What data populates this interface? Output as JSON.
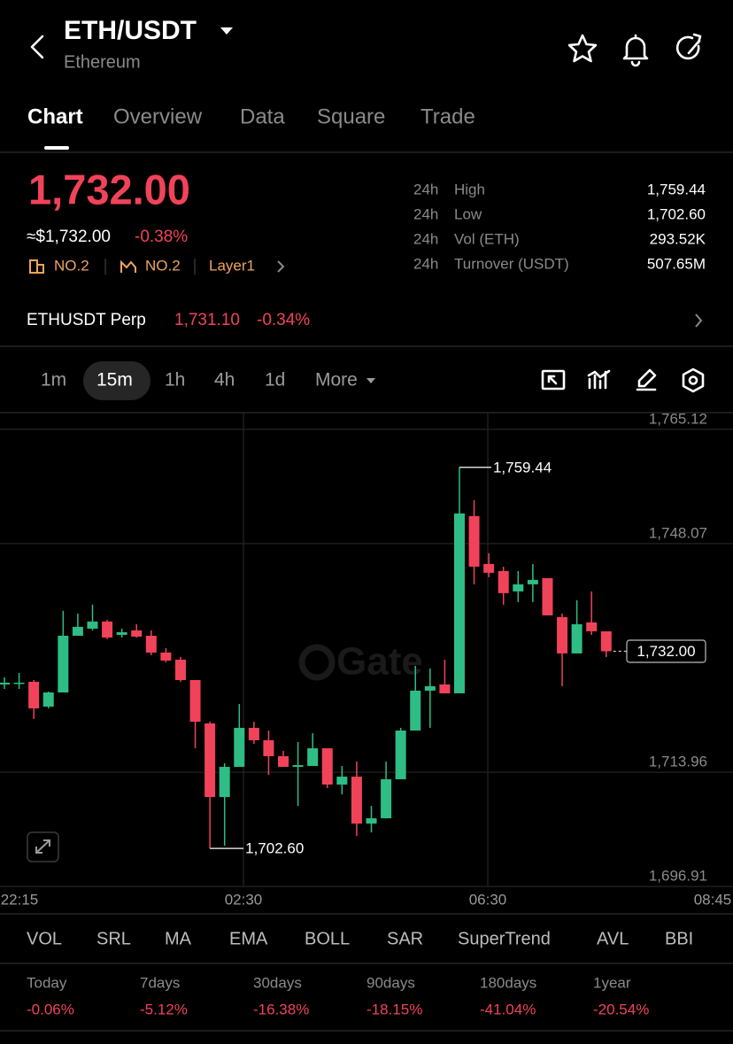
{
  "header": {
    "title": "ETH/USDT",
    "subtitle": "Ethereum"
  },
  "tabs": [
    "Chart",
    "Overview",
    "Data",
    "Square",
    "Trade"
  ],
  "price": {
    "last": "1,732.00",
    "usd": "≈$1,732.00",
    "change": "-0.38%",
    "badges": [
      "NO.2",
      "NO.2",
      "Layer1"
    ]
  },
  "stats": [
    {
      "period": "24h",
      "label": "High",
      "value": "1,759.44"
    },
    {
      "period": "24h",
      "label": "Low",
      "value": "1,702.60"
    },
    {
      "period": "24h",
      "label": "Vol (ETH)",
      "value": "293.52K"
    },
    {
      "period": "24h",
      "label": "Turnover (USDT)",
      "value": "507.65M"
    }
  ],
  "perp": {
    "name": "ETHUSDT Perp",
    "price": "1,731.10",
    "change": "-0.34%"
  },
  "intervals": [
    "1m",
    "15m",
    "1h",
    "4h",
    "1d",
    "More"
  ],
  "chart_data": {
    "type": "candlestick",
    "up_color": "#2ebd85",
    "down_color": "#f0435a",
    "open": [
      1727.05,
      1727.19,
      1727.45,
      1723.75,
      1725.86,
      1734.32,
      1735.38,
      1736.44,
      1734.45,
      1735.12,
      1734.32,
      1731.81,
      1730.75,
      1727.71,
      1721.24,
      1710.26,
      1714.76,
      1720.58,
      1718.73,
      1716.35,
      1714.76,
      1714.89,
      1717.53,
      1712.12,
      1713.3,
      1706.3,
      1707.09,
      1712.91,
      1720.18,
      1726.13,
      1727.05,
      1725.73,
      1752.17,
      1745.03,
      1743.97,
      1740.93,
      1741.99,
      1742.91,
      1737.1,
      1731.68,
      1736.31,
      1734.98
    ],
    "high": [
      1728.11,
      1728.77,
      1727.71,
      1725.99,
      1738.03,
      1737.63,
      1738.95,
      1736.7,
      1735.38,
      1736.04,
      1735.12,
      1732.47,
      1731.15,
      1727.71,
      1721.5,
      1715.29,
      1724.14,
      1721.5,
      1720.18,
      1717.14,
      1718.46,
      1719.78,
      1717.53,
      1714.89,
      1715.55,
      1708.94,
      1715.55,
      1720.58,
      1729.83,
      1729.43,
      1730.75,
      1759.44,
      1754.55,
      1746.62,
      1744.63,
      1743.97,
      1745.03,
      1742.91,
      1737.63,
      1739.61,
      1740.93,
      1734.98
    ],
    "low": [
      1726.39,
      1726.39,
      1721.9,
      1723.48,
      1725.86,
      1734.32,
      1735.12,
      1733.79,
      1734.06,
      1734.06,
      1731.41,
      1730.36,
      1727.45,
      1717.53,
      1702.6,
      1703.0,
      1714.76,
      1718.2,
      1713.57,
      1714.76,
      1708.94,
      1714.89,
      1711.59,
      1710.66,
      1704.45,
      1704.98,
      1707.09,
      1712.91,
      1720.18,
      1720.58,
      1725.73,
      1725.73,
      1741.99,
      1743.05,
      1738.95,
      1739.35,
      1739.35,
      1737.36,
      1726.79,
      1731.68,
      1734.45,
      1731.15
    ],
    "close": [
      1727.32,
      1727.32,
      1723.48,
      1725.86,
      1734.32,
      1735.65,
      1736.44,
      1734.06,
      1734.85,
      1734.19,
      1731.81,
      1730.62,
      1727.71,
      1721.5,
      1710.26,
      1714.76,
      1720.58,
      1718.73,
      1716.35,
      1714.76,
      1715.02,
      1717.53,
      1712.12,
      1713.3,
      1706.3,
      1707.09,
      1712.91,
      1720.18,
      1726.13,
      1726.79,
      1725.73,
      1752.57,
      1744.63,
      1743.71,
      1740.67,
      1741.99,
      1742.65,
      1737.36,
      1731.68,
      1736.04,
      1734.98,
      1732.0
    ],
    "ylim": [
      1696.8,
      1767.6
    ],
    "yticks": [
      {
        "value": 1765.12,
        "label": "1,765.12"
      },
      {
        "value": 1748.07,
        "label": "1,748.07"
      },
      {
        "value": 1713.96,
        "label": "1,713.96"
      },
      {
        "value": 1696.91,
        "label": "1,696.91"
      }
    ],
    "x_labels": [
      "22:15",
      "02:30",
      "06:30",
      "08:45"
    ],
    "grid": true,
    "high_marker": {
      "value": 1759.44,
      "label": "1,759.44"
    },
    "low_marker": {
      "value": 1702.6,
      "label": "1,702.60"
    },
    "last_price": {
      "value": 1732.0,
      "label": "1,732.00"
    },
    "watermark": "Gate"
  },
  "indicators": [
    "VOL",
    "SRL",
    "MA",
    "EMA",
    "BOLL",
    "SAR",
    "SuperTrend",
    "AVL",
    "BBI"
  ],
  "performance": [
    {
      "period": "Today",
      "change": "-0.06%"
    },
    {
      "period": "7days",
      "change": "-5.12%"
    },
    {
      "period": "30days",
      "change": "-16.38%"
    },
    {
      "period": "90days",
      "change": "-18.15%"
    },
    {
      "period": "180days",
      "change": "-41.04%"
    },
    {
      "period": "1year",
      "change": "-20.54%"
    }
  ]
}
